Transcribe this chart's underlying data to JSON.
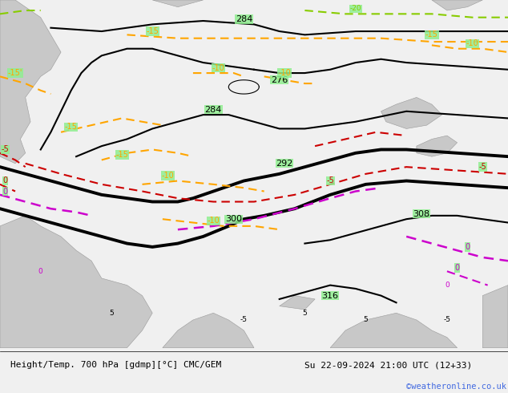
{
  "title_left": "Height/Temp. 700 hPa [gdmp][°C] CMC/GEM",
  "title_right": "Su 22-09-2024 21:00 UTC (12+33)",
  "watermark": "©weatheronline.co.uk",
  "bg_color": "#f0f0f0",
  "map_bg": "#90ee90",
  "land_color": "#c8c8c8",
  "watermark_color": "#4169e1",
  "figsize": [
    6.34,
    4.9
  ],
  "dpi": 100,
  "orange": "#FFA500",
  "red": "#CC0000",
  "magenta": "#CC00CC",
  "limegreen": "#88CC00",
  "black": "#000000"
}
